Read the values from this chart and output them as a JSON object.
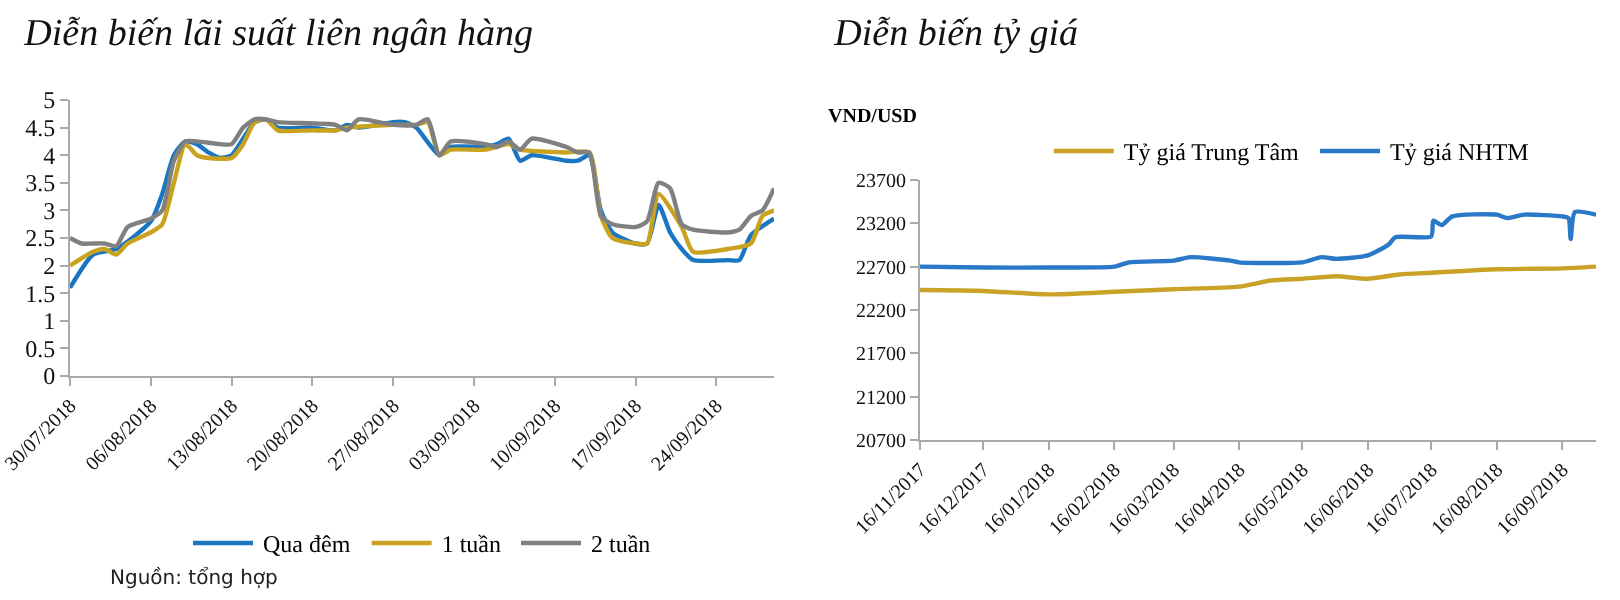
{
  "chart_data": [
    {
      "type": "line",
      "title": "Diễn biến lãi suất liên ngân hàng",
      "legend": "bottom",
      "grid": false,
      "marker": "none",
      "line_style": "solid",
      "xlim": [
        "2018-07-30",
        "2018-09-29"
      ],
      "xticks": [
        {
          "value": "2018-07-30",
          "label": "30/07/2018"
        },
        {
          "value": "2018-08-06",
          "label": "06/08/2018"
        },
        {
          "value": "2018-08-13",
          "label": "13/08/2018"
        },
        {
          "value": "2018-08-20",
          "label": "20/08/2018"
        },
        {
          "value": "2018-08-27",
          "label": "27/08/2018"
        },
        {
          "value": "2018-09-03",
          "label": "03/09/2018"
        },
        {
          "value": "2018-09-10",
          "label": "10/09/2018"
        },
        {
          "value": "2018-09-17",
          "label": "17/09/2018"
        },
        {
          "value": "2018-09-24",
          "label": "24/09/2018"
        }
      ],
      "ylim": [
        0,
        5
      ],
      "yticks": [
        0,
        0.5,
        1,
        1.5,
        2,
        2.5,
        3,
        3.5,
        4,
        4.5,
        5
      ],
      "annotations": [
        "Nguồn: tổng hợp"
      ],
      "series": [
        {
          "name": "Qua đêm",
          "color": "#1a75c2",
          "x": [
            "2018-07-30",
            "2018-08-01",
            "2018-08-03",
            "2018-08-06",
            "2018-08-07",
            "2018-08-08",
            "2018-08-09",
            "2018-08-10",
            "2018-08-11",
            "2018-08-12",
            "2018-08-13",
            "2018-08-14",
            "2018-08-15",
            "2018-08-16",
            "2018-08-17",
            "2018-08-20",
            "2018-08-22",
            "2018-08-23",
            "2018-08-24",
            "2018-08-27",
            "2018-08-28",
            "2018-08-29",
            "2018-08-31",
            "2018-09-01",
            "2018-09-04",
            "2018-09-05",
            "2018-09-06",
            "2018-09-07",
            "2018-09-08",
            "2018-09-11",
            "2018-09-12",
            "2018-09-13",
            "2018-09-14",
            "2018-09-15",
            "2018-09-17",
            "2018-09-18",
            "2018-09-19",
            "2018-09-20",
            "2018-09-21",
            "2018-09-22",
            "2018-09-25",
            "2018-09-26",
            "2018-09-27",
            "2018-09-29"
          ],
          "values": [
            1.6,
            2.2,
            2.3,
            2.8,
            3.3,
            4.0,
            4.25,
            4.2,
            4.05,
            3.95,
            4.0,
            4.3,
            4.6,
            4.65,
            4.5,
            4.5,
            4.45,
            4.55,
            4.5,
            4.6,
            4.6,
            4.5,
            4.0,
            4.15,
            4.15,
            4.2,
            4.3,
            3.9,
            4.0,
            3.9,
            3.9,
            4.0,
            3.0,
            2.6,
            2.4,
            2.4,
            3.1,
            2.6,
            2.3,
            2.1,
            2.1,
            2.1,
            2.55,
            2.85
          ]
        },
        {
          "name": "1 tuần",
          "color": "#c9a21f",
          "x": [
            "2018-07-30",
            "2018-08-01",
            "2018-08-02",
            "2018-08-03",
            "2018-08-04",
            "2018-08-06",
            "2018-08-07",
            "2018-08-08",
            "2018-08-09",
            "2018-08-10",
            "2018-08-11",
            "2018-08-13",
            "2018-08-14",
            "2018-08-15",
            "2018-08-16",
            "2018-08-17",
            "2018-08-20",
            "2018-08-22",
            "2018-08-23",
            "2018-08-27",
            "2018-08-29",
            "2018-08-30",
            "2018-08-31",
            "2018-09-01",
            "2018-09-04",
            "2018-09-06",
            "2018-09-07",
            "2018-09-11",
            "2018-09-13",
            "2018-09-14",
            "2018-09-15",
            "2018-09-17",
            "2018-09-18",
            "2018-09-19",
            "2018-09-21",
            "2018-09-22",
            "2018-09-25",
            "2018-09-27",
            "2018-09-28",
            "2018-09-29"
          ],
          "values": [
            2.0,
            2.25,
            2.3,
            2.2,
            2.4,
            2.6,
            2.75,
            3.5,
            4.2,
            4.0,
            3.95,
            3.95,
            4.2,
            4.6,
            4.65,
            4.45,
            4.45,
            4.45,
            4.5,
            4.55,
            4.55,
            4.6,
            4.0,
            4.1,
            4.1,
            4.2,
            4.1,
            4.05,
            4.05,
            2.9,
            2.5,
            2.4,
            2.4,
            3.3,
            2.7,
            2.25,
            2.3,
            2.4,
            2.9,
            3.0
          ]
        },
        {
          "name": "2 tuần",
          "color": "#808080",
          "x": [
            "2018-07-30",
            "2018-07-31",
            "2018-08-01",
            "2018-08-02",
            "2018-08-03",
            "2018-08-04",
            "2018-08-06",
            "2018-08-07",
            "2018-08-08",
            "2018-08-09",
            "2018-08-10",
            "2018-08-12",
            "2018-08-13",
            "2018-08-14",
            "2018-08-15",
            "2018-08-16",
            "2018-08-17",
            "2018-08-22",
            "2018-08-23",
            "2018-08-24",
            "2018-08-27",
            "2018-08-29",
            "2018-08-30",
            "2018-08-31",
            "2018-09-01",
            "2018-09-04",
            "2018-09-05",
            "2018-09-06",
            "2018-09-07",
            "2018-09-08",
            "2018-09-11",
            "2018-09-12",
            "2018-09-13",
            "2018-09-14",
            "2018-09-15",
            "2018-09-17",
            "2018-09-18",
            "2018-09-19",
            "2018-09-20",
            "2018-09-21",
            "2018-09-22",
            "2018-09-25",
            "2018-09-26",
            "2018-09-27",
            "2018-09-28",
            "2018-09-29"
          ],
          "values": [
            2.5,
            2.4,
            2.4,
            2.4,
            2.35,
            2.7,
            2.85,
            3.0,
            3.9,
            4.25,
            4.25,
            4.2,
            4.2,
            4.5,
            4.65,
            4.65,
            4.6,
            4.55,
            4.45,
            4.65,
            4.55,
            4.55,
            4.65,
            4.0,
            4.25,
            4.2,
            4.15,
            4.25,
            4.1,
            4.3,
            4.15,
            4.05,
            4.05,
            2.9,
            2.75,
            2.7,
            2.8,
            3.5,
            3.4,
            2.75,
            2.65,
            2.6,
            2.65,
            2.9,
            3.0,
            3.4
          ]
        }
      ]
    },
    {
      "type": "line",
      "title": "Diễn biến tỷ giá",
      "ylabel": "VND/USD",
      "legend": "top",
      "grid": false,
      "marker": "none",
      "line_style": "solid",
      "xlim": [
        "2017-11-16",
        "2018-10-02"
      ],
      "xticks": [
        {
          "value": "2017-11-16",
          "label": "16/11/2017"
        },
        {
          "value": "2017-12-16",
          "label": "16/12/2017"
        },
        {
          "value": "2018-01-16",
          "label": "16/01/2018"
        },
        {
          "value": "2018-02-16",
          "label": "16/02/2018"
        },
        {
          "value": "2018-03-16",
          "label": "16/03/2018"
        },
        {
          "value": "2018-04-16",
          "label": "16/04/2018"
        },
        {
          "value": "2018-05-16",
          "label": "16/05/2018"
        },
        {
          "value": "2018-06-16",
          "label": "16/06/2018"
        },
        {
          "value": "2018-07-16",
          "label": "16/07/2018"
        },
        {
          "value": "2018-08-16",
          "label": "16/08/2018"
        },
        {
          "value": "2018-09-16",
          "label": "16/09/2018"
        }
      ],
      "ylim": [
        20700,
        23700
      ],
      "yticks": [
        20700,
        21200,
        21700,
        22200,
        22700,
        23200,
        23700
      ],
      "series": [
        {
          "name": "Tỷ giá Trung Tâm",
          "color": "#c9a227",
          "x": [
            "2017-11-16",
            "2017-12-16",
            "2018-01-16",
            "2018-02-16",
            "2018-03-16",
            "2018-04-16",
            "2018-05-01",
            "2018-05-16",
            "2018-06-01",
            "2018-06-16",
            "2018-07-01",
            "2018-07-16",
            "2018-08-16",
            "2018-09-16",
            "2018-10-02"
          ],
          "values": [
            22430,
            22420,
            22380,
            22410,
            22440,
            22470,
            22540,
            22560,
            22590,
            22560,
            22610,
            22630,
            22670,
            22680,
            22700
          ]
        },
        {
          "name": "Tỷ giá NHTM",
          "color": "#2a78c8",
          "x": [
            "2017-11-16",
            "2017-12-16",
            "2018-01-16",
            "2018-02-16",
            "2018-02-23",
            "2018-03-16",
            "2018-03-24",
            "2018-04-12",
            "2018-04-16",
            "2018-05-16",
            "2018-05-25",
            "2018-06-01",
            "2018-06-16",
            "2018-06-26",
            "2018-06-29",
            "2018-07-16",
            "2018-07-17",
            "2018-07-21",
            "2018-07-26",
            "2018-08-16",
            "2018-08-21",
            "2018-08-29",
            "2018-09-16",
            "2018-09-19",
            "2018-09-20",
            "2018-09-22",
            "2018-10-02"
          ],
          "values": [
            22700,
            22690,
            22690,
            22700,
            22750,
            22770,
            22810,
            22770,
            22750,
            22750,
            22810,
            22790,
            22830,
            22960,
            23040,
            23050,
            23230,
            23180,
            23280,
            23300,
            23260,
            23300,
            23280,
            23260,
            23020,
            23330,
            23300
          ]
        }
      ]
    }
  ]
}
